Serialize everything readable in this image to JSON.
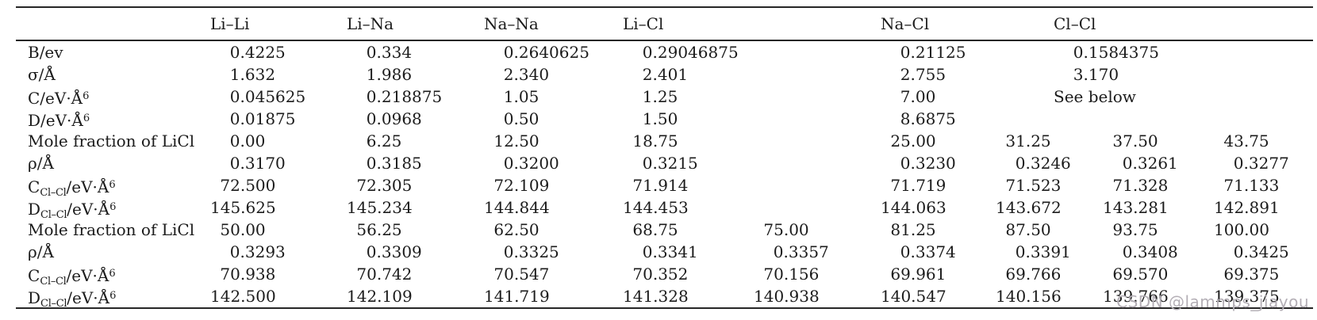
{
  "colors": {
    "text": "#1b1b1b",
    "rule": "#262626",
    "watermark": "#b4afb6"
  },
  "watermark": {
    "text": "CSDN @lammps_jiayou"
  },
  "table": {
    "header": {
      "labels": [
        "Li–Li",
        "Li–Na",
        "Na–Na",
        "Li–Cl",
        "",
        "Na–Cl",
        "",
        "Cl–Cl",
        ""
      ]
    },
    "rows": [
      {
        "label_parts": [
          {
            "text": "B/ev",
            "style": "normal"
          }
        ],
        "cells": [
          "0.4225",
          "0.334",
          "0.2640625",
          "0.29046875",
          "",
          "0.21125",
          "",
          "0.1584375",
          ""
        ]
      },
      {
        "label_parts": [
          {
            "text": "σ/Å",
            "style": "normal"
          }
        ],
        "cells": [
          "1.632",
          "1.986",
          "2.340",
          "2.401",
          "",
          "2.755",
          "",
          "3.170",
          ""
        ]
      },
      {
        "label_parts": [
          {
            "text": "C/eV·Å",
            "style": "normal"
          },
          {
            "text": "6",
            "style": "sup"
          }
        ],
        "cells": [
          "0.045625",
          "0.218875",
          "1.05",
          "1.25",
          "",
          "7.00",
          "",
          "See below",
          ""
        ]
      },
      {
        "label_parts": [
          {
            "text": "D/eV·Å",
            "style": "normal"
          },
          {
            "text": "6",
            "style": "sup"
          }
        ],
        "cells": [
          "0.01875",
          "0.0968",
          "0.50",
          "1.50",
          "",
          "8.6875",
          "",
          "",
          ""
        ]
      },
      {
        "label_parts": [
          {
            "text": "Mole fraction of LiCl",
            "style": "normal"
          }
        ],
        "cells": [
          "0.00",
          "6.25",
          "12.50",
          "18.75",
          "",
          "25.00",
          "31.25",
          "37.50",
          "43.75"
        ]
      },
      {
        "label_parts": [
          {
            "text": "ρ/Å",
            "style": "normal"
          }
        ],
        "cells": [
          "0.3170",
          "0.3185",
          "0.3200",
          "0.3215",
          "",
          "0.3230",
          "0.3246",
          "0.3261",
          "0.3277"
        ]
      },
      {
        "label_parts": [
          {
            "text": "C",
            "style": "normal"
          },
          {
            "text": "Cl–Cl",
            "style": "sub"
          },
          {
            "text": "/eV·Å",
            "style": "normal"
          },
          {
            "text": "6",
            "style": "sup"
          }
        ],
        "cells": [
          "72.500",
          "72.305",
          "72.109",
          "71.914",
          "",
          "71.719",
          "71.523",
          "71.328",
          "71.133"
        ]
      },
      {
        "label_parts": [
          {
            "text": "D",
            "style": "normal"
          },
          {
            "text": "Cl–Cl",
            "style": "sub"
          },
          {
            "text": "/eV·Å",
            "style": "normal"
          },
          {
            "text": "6",
            "style": "sup"
          }
        ],
        "cells": [
          "145.625",
          "145.234",
          "144.844",
          "144.453",
          "",
          "144.063",
          "143.672",
          "143.281",
          "142.891"
        ]
      },
      {
        "label_parts": [
          {
            "text": "Mole fraction of LiCl",
            "style": "normal"
          }
        ],
        "cells": [
          "50.00",
          "56.25",
          "62.50",
          "68.75",
          "75.00",
          "81.25",
          "87.50",
          "93.75",
          "100.00"
        ]
      },
      {
        "label_parts": [
          {
            "text": "ρ/Å",
            "style": "normal"
          }
        ],
        "cells": [
          "0.3293",
          "0.3309",
          "0.3325",
          "0.3341",
          "0.3357",
          "0.3374",
          "0.3391",
          "0.3408",
          "0.3425"
        ]
      },
      {
        "label_parts": [
          {
            "text": "C",
            "style": "normal"
          },
          {
            "text": "Cl–Cl",
            "style": "sub"
          },
          {
            "text": "/eV·Å",
            "style": "normal"
          },
          {
            "text": "6",
            "style": "sup"
          }
        ],
        "cells": [
          "70.938",
          "70.742",
          "70.547",
          "70.352",
          "70.156",
          "69.961",
          "69.766",
          "69.570",
          "69.375"
        ]
      },
      {
        "label_parts": [
          {
            "text": "D",
            "style": "normal"
          },
          {
            "text": "Cl–Cl",
            "style": "sub"
          },
          {
            "text": "/eV·Å",
            "style": "normal"
          },
          {
            "text": "6",
            "style": "sup"
          }
        ],
        "cells": [
          "142.500",
          "142.109",
          "141.719",
          "141.328",
          "140.938",
          "140.547",
          "140.156",
          "139.766",
          "139.375"
        ]
      }
    ]
  }
}
